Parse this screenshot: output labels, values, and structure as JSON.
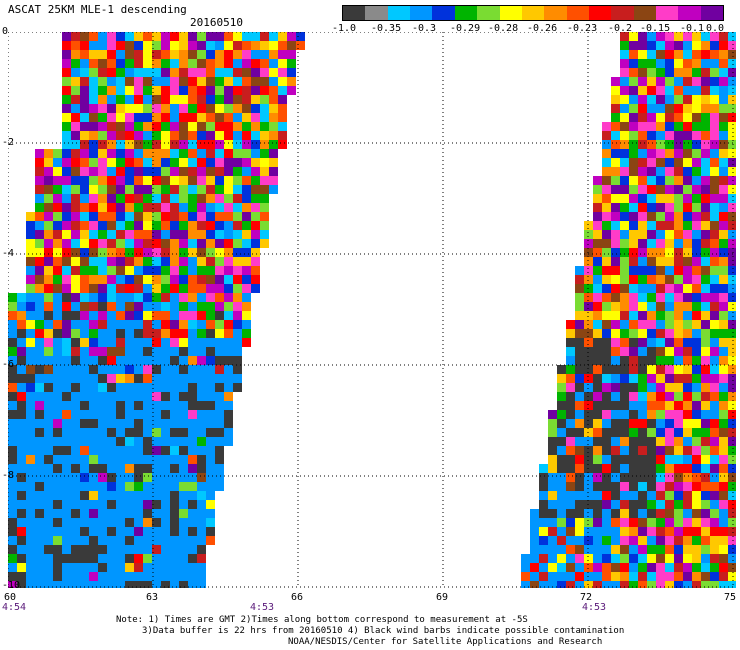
{
  "header": {
    "title": "ASCAT 25KM MLE-1 descending",
    "date": "20160510"
  },
  "colorbar": {
    "labels": [
      "-1.0",
      "-0.35",
      "-0.3",
      "-0.29",
      "-0.28",
      "-0.26",
      "-0.23",
      "-0.2",
      "-0.15",
      "-0.1",
      "0.0"
    ],
    "colors": [
      "#3a3a3a",
      "#8a8a8a",
      "#00c8ff",
      "#0096ff",
      "#0032dc",
      "#00b400",
      "#7adc32",
      "#ffff00",
      "#ffc800",
      "#ff8c00",
      "#ff5000",
      "#ff0000",
      "#c81e1e",
      "#8b4513",
      "#ff3cc8",
      "#c000c0",
      "#7000a0"
    ]
  },
  "map": {
    "lat_labels": [
      "0",
      "-2",
      "-4",
      "-6",
      "-8",
      "-10"
    ],
    "lon_labels": [
      "60",
      "63",
      "66",
      "69",
      "72",
      "75"
    ],
    "time_labels": [
      "4:54",
      "4:53",
      "4:53"
    ]
  },
  "notes": {
    "line1": "Note: 1) Times are GMT 2)Times along bottom correspond to measurement at -5S",
    "line2": "3)Data buffer is 22 hrs from 20160510 4) Black wind barbs indicate possible contamination",
    "line3": "NOAA/NESDIS/Center for Satellite Applications and Research"
  }
}
